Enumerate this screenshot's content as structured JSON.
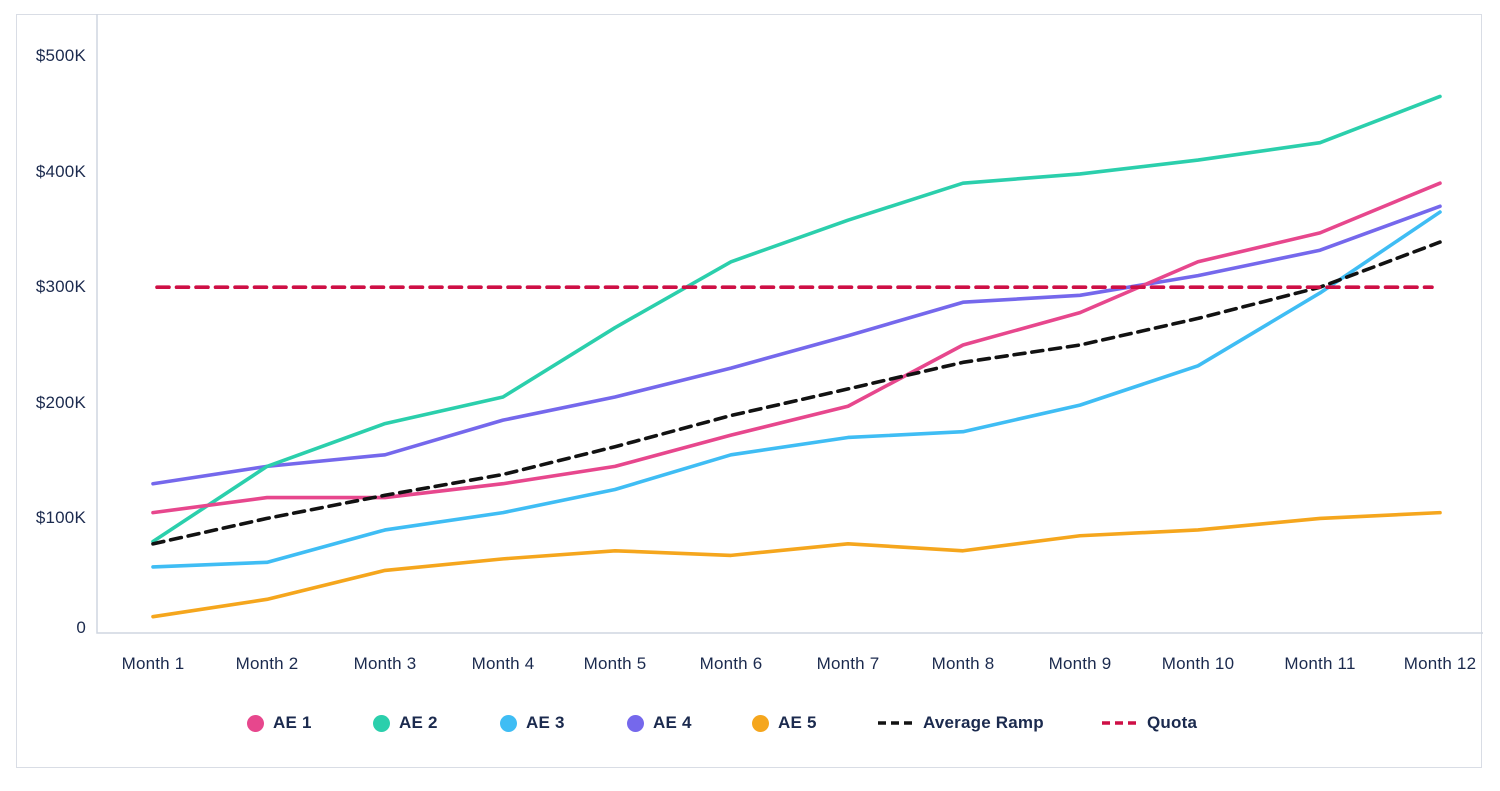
{
  "chart_data": {
    "type": "line",
    "title": "",
    "x_categories": [
      "Month 1",
      "Month 2",
      "Month 3",
      "Month 4",
      "Month 5",
      "Month 6",
      "Month 7",
      "Month 8",
      "Month 9",
      "Month 10",
      "Month 11",
      "Month 12"
    ],
    "y_ticks": [
      {
        "label": "$500K",
        "value": 500
      },
      {
        "label": "$400K",
        "value": 400
      },
      {
        "label": "$300K",
        "value": 300
      },
      {
        "label": "$200K",
        "value": 200
      },
      {
        "label": "$100K",
        "value": 100
      },
      {
        "label": "0",
        "value": 0
      }
    ],
    "ylim": [
      0,
      530
    ],
    "grid": false,
    "legend_position": "bottom",
    "series": [
      {
        "name": "AE 1",
        "color": "#E7478D",
        "style": "solid",
        "marker": "dot",
        "values": [
          105,
          118,
          118,
          130,
          145,
          172,
          197,
          250,
          278,
          322,
          347,
          390
        ]
      },
      {
        "name": "AE 2",
        "color": "#2BCFAC",
        "style": "solid",
        "marker": "dot",
        "values": [
          80,
          145,
          182,
          205,
          265,
          322,
          358,
          390,
          398,
          410,
          425,
          465
        ]
      },
      {
        "name": "AE 3",
        "color": "#3FBDF4",
        "style": "solid",
        "marker": "dot",
        "values": [
          58,
          62,
          90,
          105,
          125,
          155,
          170,
          175,
          198,
          232,
          295,
          365
        ]
      },
      {
        "name": "AE 4",
        "color": "#7568EC",
        "style": "solid",
        "marker": "dot",
        "values": [
          130,
          145,
          155,
          185,
          205,
          230,
          258,
          287,
          293,
          310,
          332,
          370
        ]
      },
      {
        "name": "AE 5",
        "color": "#F5A61D",
        "style": "solid",
        "marker": "dot",
        "values": [
          15,
          30,
          55,
          65,
          72,
          68,
          78,
          72,
          85,
          90,
          100,
          105
        ]
      },
      {
        "name": "Average Ramp",
        "color": "#121212",
        "style": "dashed",
        "marker": "dash",
        "values": [
          78,
          100,
          120,
          138,
          162,
          189,
          212,
          235,
          250,
          273,
          300,
          339
        ]
      },
      {
        "name": "Quota",
        "color": "#CE0F45",
        "style": "dashed",
        "marker": "dash",
        "values": [
          300,
          300,
          300,
          300,
          300,
          300,
          300,
          300,
          300,
          300,
          300,
          300
        ]
      }
    ]
  },
  "colors": {
    "text_navy": "#1B2A4E",
    "axis_line": "#CFD5E0",
    "card_border": "#D9DDE5",
    "background": "#FFFFFF"
  }
}
